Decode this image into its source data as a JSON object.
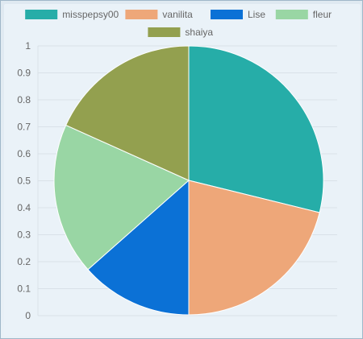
{
  "chart_data": {
    "type": "pie",
    "labels": [
      "misspepsy00",
      "vanilita",
      "Lise",
      "fleur",
      "shaiya"
    ],
    "values": [
      0.3,
      0.22,
      0.14,
      0.19,
      0.19
    ],
    "colors": [
      "#26ada8",
      "#eea779",
      "#0b71d6",
      "#99d6a4",
      "#93a04f"
    ],
    "y_ticks": [
      "0",
      "0.1",
      "0.2",
      "0.3",
      "0.4",
      "0.5",
      "0.6",
      "0.7",
      "0.8",
      "0.9",
      "1"
    ],
    "ylim": [
      0,
      1
    ],
    "legend_position": "top",
    "grid": true,
    "title": ""
  }
}
